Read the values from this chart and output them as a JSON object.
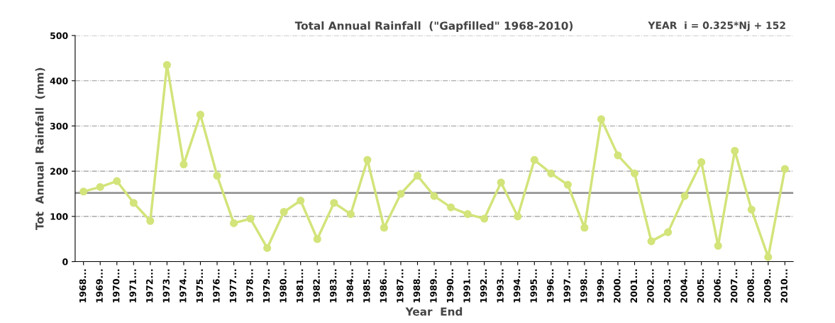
{
  "chart_data": {
    "type": "line",
    "title": "Total Annual Rainfall  (\"Gapfilled\" 1968-2010)",
    "xlabel": "Year  End",
    "ylabel": "Tot  Annual  Rainfall  (mm)",
    "annotations": [
      "YEAR  i = 0.325*Nj + 152"
    ],
    "categories": [
      "1968...",
      "1969...",
      "1970...",
      "1971...",
      "1972...",
      "1973...",
      "1974...",
      "1975...",
      "1976...",
      "1977...",
      "1978...",
      "1979...",
      "1980...",
      "1981...",
      "1982...",
      "1983...",
      "1984...",
      "1985...",
      "1986...",
      "1987...",
      "1988...",
      "1989...",
      "1990...",
      "1991...",
      "1992...",
      "1993...",
      "1994...",
      "1995...",
      "1996...",
      "1997...",
      "1998...",
      "1999...",
      "2000...",
      "2001...",
      "2002...",
      "2003...",
      "2004...",
      "2005...",
      "2006...",
      "2007...",
      "2008...",
      "2009...",
      "2010..."
    ],
    "series": [
      {
        "color": "#d2e47a",
        "values": [
          155,
          165,
          178,
          130,
          90,
          435,
          215,
          325,
          190,
          85,
          95,
          30,
          110,
          135,
          50,
          130,
          105,
          225,
          75,
          150,
          190,
          145,
          120,
          105,
          95,
          175,
          100,
          225,
          195,
          170,
          75,
          315,
          235,
          195,
          45,
          65,
          145,
          220,
          35,
          245,
          115,
          10,
          205
        ]
      }
    ],
    "ref_lines": [
      {
        "axis": "y",
        "value": 152,
        "label": null,
        "color": "#8c8c8c",
        "line_style": "solid"
      }
    ],
    "ylim": [
      0,
      500
    ],
    "yticks": [
      0,
      100,
      200,
      300,
      400,
      500
    ],
    "grid": "y",
    "marker": "circle",
    "line_style": "solid",
    "legend": false
  }
}
